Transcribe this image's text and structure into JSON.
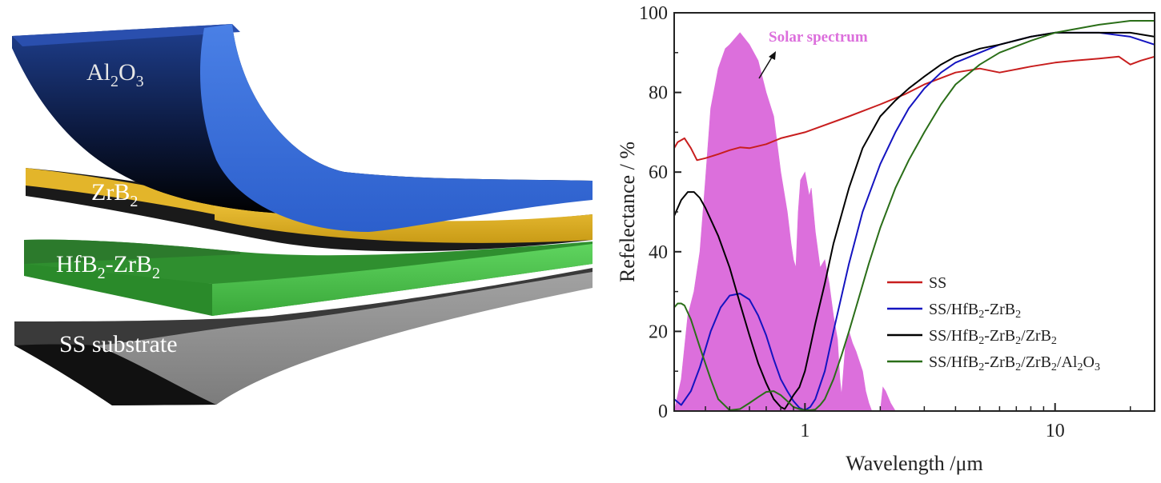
{
  "layers_figure": {
    "layers": [
      {
        "id": "al2o3",
        "base": "Al",
        "sub1": "2",
        "mid": "O",
        "sub2": "3",
        "color": "#3a6fd8"
      },
      {
        "id": "zrb2",
        "base": "ZrB",
        "sub1": "2",
        "mid": "",
        "sub2": "",
        "color": "#e2b62a"
      },
      {
        "id": "hfb2-zrb2",
        "base": "HfB",
        "sub1": "2",
        "mid": "-ZrB",
        "sub2": "2",
        "color": "#4cc24c"
      },
      {
        "id": "ss",
        "base": "SS substrate",
        "sub1": "",
        "mid": "",
        "sub2": "",
        "color": "#8f8f8f"
      }
    ]
  },
  "chart_data": {
    "type": "line",
    "x_scale": "log",
    "xlabel": "Wavelength /μm",
    "ylabel": "Refelectance / %",
    "xlim": [
      0.3,
      25
    ],
    "ylim": [
      0,
      100
    ],
    "x_ticks": [
      {
        "value": 1,
        "label": "1"
      },
      {
        "value": 10,
        "label": "10"
      }
    ],
    "y_ticks": [
      0,
      20,
      40,
      60,
      80,
      100
    ],
    "annotation": "Solar spectrum",
    "legend_position": "center-right",
    "solar_spectrum": {
      "color": "#dc6fdc",
      "x": [
        0.3,
        0.32,
        0.34,
        0.36,
        0.38,
        0.4,
        0.42,
        0.45,
        0.48,
        0.5,
        0.55,
        0.6,
        0.65,
        0.7,
        0.75,
        0.8,
        0.85,
        0.88,
        0.9,
        0.92,
        0.94,
        0.96,
        1.0,
        1.04,
        1.06,
        1.1,
        1.15,
        1.2,
        1.25,
        1.3,
        1.35,
        1.38,
        1.4,
        1.45,
        1.5,
        1.55,
        1.6,
        1.7,
        1.75,
        1.8,
        1.85,
        1.9,
        2.0,
        2.05,
        2.1,
        2.2,
        2.3,
        2.4,
        25
      ],
      "y": [
        0,
        8,
        24,
        30,
        40,
        58,
        76,
        86,
        91,
        92,
        95,
        92,
        88,
        80,
        74,
        60,
        50,
        42,
        38,
        36,
        50,
        58,
        60,
        54,
        56,
        45,
        36,
        38,
        32,
        24,
        18,
        8,
        4,
        16,
        20,
        17,
        15,
        10,
        5,
        2,
        0,
        0,
        0,
        6,
        5,
        2,
        0,
        0,
        0
      ]
    },
    "series": [
      {
        "name": "SS",
        "color": "#c81e1e",
        "x": [
          0.3,
          0.31,
          0.33,
          0.35,
          0.37,
          0.4,
          0.45,
          0.5,
          0.55,
          0.6,
          0.7,
          0.8,
          1.0,
          1.5,
          2.0,
          2.5,
          3,
          4,
          5,
          6,
          8,
          10,
          12,
          15,
          18,
          20,
          22,
          25
        ],
        "y": [
          66,
          67.5,
          68.5,
          66,
          63,
          63.5,
          64.5,
          65.5,
          66.2,
          66,
          67,
          68.5,
          70,
          74,
          77,
          79.5,
          82,
          85,
          86,
          85,
          86.5,
          87.5,
          88,
          88.5,
          89,
          87,
          88,
          89
        ]
      },
      {
        "name": "SS/HfB2-ZrB2",
        "color": "#1414c0",
        "x": [
          0.3,
          0.32,
          0.35,
          0.38,
          0.42,
          0.46,
          0.5,
          0.55,
          0.6,
          0.65,
          0.7,
          0.75,
          0.8,
          0.85,
          0.9,
          0.95,
          1.0,
          1.05,
          1.1,
          1.2,
          1.3,
          1.5,
          1.7,
          2.0,
          2.3,
          2.6,
          3,
          3.5,
          4,
          5,
          6,
          8,
          10,
          15,
          20,
          25
        ],
        "y": [
          3,
          1.5,
          5,
          11,
          20,
          26,
          29,
          29.5,
          28,
          24,
          19,
          13,
          8,
          5,
          2.5,
          0.8,
          0.2,
          1,
          3,
          10,
          20,
          37,
          50,
          62,
          70,
          76,
          81,
          85,
          87.5,
          90,
          92,
          94,
          95,
          95,
          94,
          92
        ]
      },
      {
        "name": "SS/HfB2-ZrB2/ZrB2",
        "color": "#000000",
        "x": [
          0.3,
          0.32,
          0.34,
          0.36,
          0.38,
          0.4,
          0.45,
          0.5,
          0.55,
          0.6,
          0.65,
          0.7,
          0.75,
          0.8,
          0.83,
          0.85,
          0.88,
          0.9,
          0.95,
          1.0,
          1.05,
          1.1,
          1.2,
          1.3,
          1.5,
          1.7,
          2.0,
          2.3,
          2.6,
          3,
          3.5,
          4,
          5,
          6,
          8,
          10,
          15,
          20,
          25
        ],
        "y": [
          49,
          53,
          55,
          55,
          53.5,
          51,
          44,
          36,
          27,
          19,
          12,
          7,
          3,
          1,
          0.5,
          1.5,
          3,
          4,
          6,
          10,
          16,
          22,
          32,
          42,
          56,
          66,
          74,
          78,
          81,
          84,
          87,
          89,
          91,
          92,
          94,
          95,
          95,
          95,
          94
        ]
      },
      {
        "name": "SS/HfB2-ZrB2/ZrB2/Al2O3",
        "color": "#2a6e18",
        "x": [
          0.3,
          0.31,
          0.32,
          0.33,
          0.35,
          0.38,
          0.42,
          0.45,
          0.5,
          0.55,
          0.6,
          0.65,
          0.7,
          0.75,
          0.8,
          0.85,
          0.9,
          0.95,
          1.0,
          1.05,
          1.1,
          1.15,
          1.2,
          1.3,
          1.4,
          1.5,
          1.6,
          1.8,
          2.0,
          2.3,
          2.6,
          3,
          3.5,
          4,
          5,
          6,
          8,
          10,
          15,
          20,
          25
        ],
        "y": [
          26,
          27,
          27,
          26.5,
          23,
          16,
          8,
          3,
          0.2,
          0.5,
          2,
          3.5,
          4.8,
          5,
          4,
          2.5,
          1,
          0.5,
          0.2,
          0.2,
          0.4,
          1.5,
          3,
          8,
          14,
          20,
          26,
          37,
          46,
          56,
          63,
          70,
          77,
          82,
          87,
          90,
          93,
          95,
          97,
          98,
          98
        ]
      }
    ],
    "legend_items": [
      {
        "label": "SS",
        "color": "#c81e1e",
        "parts": [
          {
            "t": "SS",
            "sub": false
          }
        ]
      },
      {
        "label": "SS/HfB2-ZrB2",
        "color": "#1414c0",
        "parts": [
          {
            "t": "SS/HfB",
            "sub": false
          },
          {
            "t": "2",
            "sub": true
          },
          {
            "t": "-ZrB",
            "sub": false
          },
          {
            "t": "2",
            "sub": true
          }
        ]
      },
      {
        "label": "SS/HfB2-ZrB2/ZrB2",
        "color": "#000000",
        "parts": [
          {
            "t": "SS/HfB",
            "sub": false
          },
          {
            "t": "2",
            "sub": true
          },
          {
            "t": "-ZrB",
            "sub": false
          },
          {
            "t": "2",
            "sub": true
          },
          {
            "t": "/ZrB",
            "sub": false
          },
          {
            "t": "2",
            "sub": true
          }
        ]
      },
      {
        "label": "SS/HfB2-ZrB2/ZrB2/Al2O3",
        "color": "#2a6e18",
        "parts": [
          {
            "t": "SS/HfB",
            "sub": false
          },
          {
            "t": "2",
            "sub": true
          },
          {
            "t": "-ZrB",
            "sub": false
          },
          {
            "t": "2",
            "sub": true
          },
          {
            "t": "/ZrB",
            "sub": false
          },
          {
            "t": "2",
            "sub": true
          },
          {
            "t": "/Al",
            "sub": false
          },
          {
            "t": "2",
            "sub": true
          },
          {
            "t": "O",
            "sub": false
          },
          {
            "t": "3",
            "sub": true
          }
        ]
      }
    ]
  }
}
